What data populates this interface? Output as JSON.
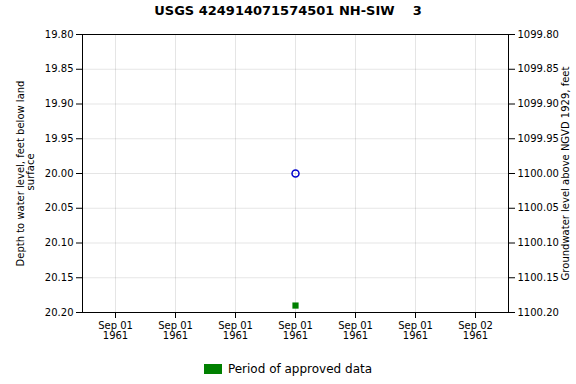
{
  "chart_data": {
    "type": "scatter",
    "title": "USGS 424914071574501 NH-SIW    3",
    "ylabel": "Depth to water level, feet below land\n surface",
    "y2label": "Groundwater level above NGVD 1929, feet",
    "categories": [
      "Sep 01\n1961",
      "Sep 01\n1961",
      "Sep 01\n1961",
      "Sep 01\n1961",
      "Sep 01\n1961",
      "Sep 01\n1961",
      "Sep 02\n1961"
    ],
    "series": [
      {
        "color": "#0000cc",
        "marker": "open_circle",
        "values": [
          null,
          null,
          null,
          20,
          null,
          null,
          null
        ]
      },
      {
        "name": "Period of approved data",
        "color": "#008000",
        "marker": "square",
        "values": [
          null,
          null,
          null,
          20.19,
          null,
          null,
          null
        ]
      }
    ],
    "ylim": [
      20.2,
      19.8
    ],
    "yticks": [
      {
        "value": 19.8,
        "label": "19.80"
      },
      19.85,
      {
        "value": 19.9,
        "label": "19.90"
      },
      19.95,
      {
        "value": 20,
        "label": "20.00"
      },
      20.05,
      {
        "value": 20.1,
        "label": "20.10"
      },
      20.15,
      {
        "value": 20.2,
        "label": "20.20"
      }
    ],
    "y2lim": [
      1100.2,
      1099.8
    ],
    "y2ticks": [
      {
        "value": 1100.2,
        "label": "1100.20"
      },
      1100.15,
      {
        "value": 1100.1,
        "label": "1100.10"
      },
      1100.05,
      {
        "value": 1100,
        "label": "1100.00"
      },
      1099.95,
      {
        "value": 1099.9,
        "label": "1099.90"
      },
      1099.85,
      {
        "value": 1099.8,
        "label": "1099.80"
      }
    ],
    "grid": true,
    "legend": "bottom"
  }
}
